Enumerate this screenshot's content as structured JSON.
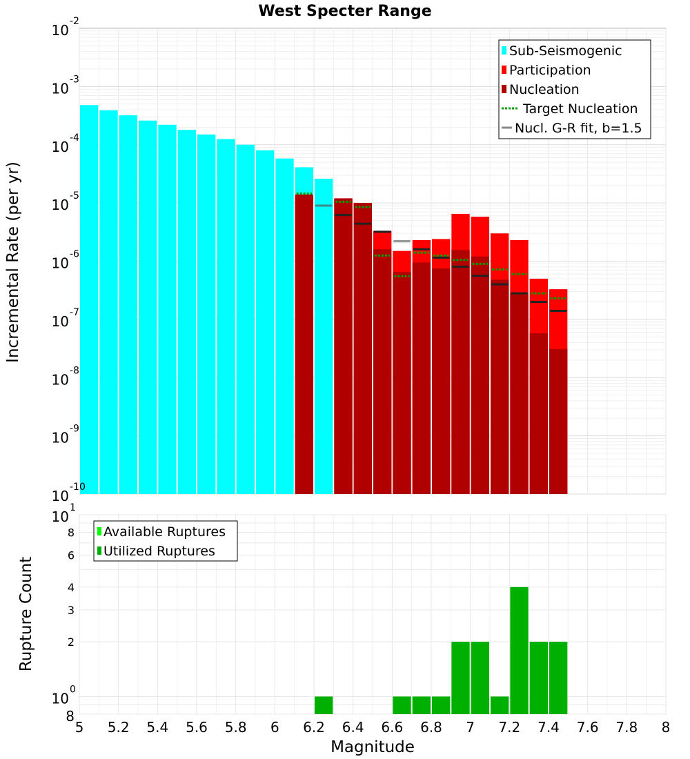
{
  "chart_data": [
    {
      "type": "bar",
      "id": "rates",
      "title": "West Specter Range",
      "xlabel": "",
      "ylabel": "Incremental Rate (per yr)",
      "yscale": "log",
      "xlim": [
        5,
        8
      ],
      "ylim": [
        1e-10,
        0.01
      ],
      "y_tick_exponents": [
        -10,
        -9,
        -8,
        -7,
        -6,
        -5,
        -4,
        -3,
        -2
      ],
      "bin_width": 0.1,
      "colors": {
        "sub_seismogenic": "#00ffff",
        "participation": "#ff0000",
        "nucleation": "#b00000",
        "target_nucleation": "#00a000",
        "gr_fit": "#888888"
      },
      "legend": {
        "position": "top-right",
        "entries": [
          "Sub-Seismogenic",
          "Participation",
          "Nucleation",
          "Target Nucleation",
          "Nucl. G-R fit, b=1.5"
        ]
      },
      "series": [
        {
          "name": "Sub-Seismogenic",
          "x": [
            5.05,
            5.15,
            5.25,
            5.35,
            5.45,
            5.55,
            5.65,
            5.75,
            5.85,
            5.95,
            6.05,
            6.15,
            6.25
          ],
          "values": [
            0.00048,
            0.00039,
            0.00032,
            0.00026,
            0.00022,
            0.00018,
            0.00015,
            0.000125,
            0.0001,
            8e-05,
            5.8e-05,
            4.1e-05,
            2.6e-05
          ]
        },
        {
          "name": "Participation",
          "x": [
            6.15,
            6.35,
            6.45,
            6.55,
            6.65,
            6.75,
            6.85,
            6.95,
            7.05,
            7.15,
            7.25,
            7.35,
            7.45
          ],
          "values": [
            1.4e-05,
            1.2e-05,
            1e-05,
            3.3e-06,
            1.5e-06,
            2.3e-06,
            2.4e-06,
            6.5e-06,
            5.8e-06,
            3e-06,
            2.3e-06,
            5e-07,
            3.3e-07
          ]
        },
        {
          "name": "Nucleation",
          "x": [
            6.15,
            6.35,
            6.45,
            6.55,
            6.65,
            6.75,
            6.85,
            6.95,
            7.05,
            7.15,
            7.25,
            7.35,
            7.45
          ],
          "values": [
            1.4e-05,
            1.2e-05,
            1e-05,
            1.6e-06,
            6.5e-07,
            9.5e-07,
            7.5e-07,
            1.55e-06,
            1.2e-06,
            4.8e-07,
            2.8e-07,
            5.8e-08,
            3.1e-08
          ]
        },
        {
          "name": "Target Nucleation",
          "x": [
            6.15,
            6.35,
            6.45,
            6.55,
            6.65,
            6.75,
            6.85,
            6.95,
            7.05,
            7.15,
            7.25,
            7.35,
            7.45
          ],
          "values": [
            1.45e-05,
            1.05e-05,
            8.5e-06,
            1.25e-06,
            5.5e-07,
            1.4e-06,
            1.25e-06,
            1.05e-06,
            9e-07,
            7.2e-07,
            6e-07,
            2.8e-07,
            2.3e-07
          ]
        },
        {
          "name": "Nucl. G-R fit, b=1.5",
          "x": [
            6.25,
            6.35,
            6.45,
            6.55,
            6.65,
            6.75,
            6.85,
            6.95,
            7.05,
            7.15,
            7.25,
            7.35,
            7.45
          ],
          "values": [
            9e-06,
            6.2e-06,
            4.4e-06,
            3.2e-06,
            2.2e-06,
            1.6e-06,
            1.15e-06,
            8e-07,
            5.6e-07,
            4e-07,
            2.8e-07,
            2e-07,
            1.4e-07
          ]
        }
      ]
    },
    {
      "type": "bar",
      "id": "counts",
      "title": "",
      "xlabel": "Magnitude",
      "ylabel": "Rupture Count",
      "yscale": "log",
      "xlim": [
        5,
        8
      ],
      "ylim": [
        0.8,
        10
      ],
      "x_ticks": [
        "5",
        "5.2",
        "5.4",
        "5.6",
        "5.8",
        "6",
        "6.2",
        "6.4",
        "6.6",
        "6.8",
        "7",
        "7.2",
        "7.4",
        "7.6",
        "7.8",
        "8"
      ],
      "y_minor_ticks": [
        {
          "value": 0.8,
          "label": "8"
        },
        {
          "value": 2,
          "label": "2"
        },
        {
          "value": 3,
          "label": "3"
        },
        {
          "value": 4,
          "label": "4"
        },
        {
          "value": 6,
          "label": "6"
        },
        {
          "value": 8,
          "label": "8"
        }
      ],
      "y_major_ticks": [
        {
          "value": 1,
          "base": "10",
          "exp": "0"
        },
        {
          "value": 10,
          "base": "10",
          "exp": "1"
        }
      ],
      "colors": {
        "available": "#00ff00",
        "utilized": "#00b000"
      },
      "legend": {
        "position": "top-left",
        "entries": [
          "Available Ruptures",
          "Utilized Ruptures"
        ]
      },
      "series": [
        {
          "name": "Utilized Ruptures",
          "x": [
            6.25,
            6.65,
            6.75,
            6.85,
            6.95,
            7.05,
            7.15,
            7.25,
            7.35,
            7.45
          ],
          "values": [
            1,
            1,
            1,
            1,
            2,
            2,
            1,
            4,
            2,
            2
          ]
        }
      ]
    }
  ]
}
